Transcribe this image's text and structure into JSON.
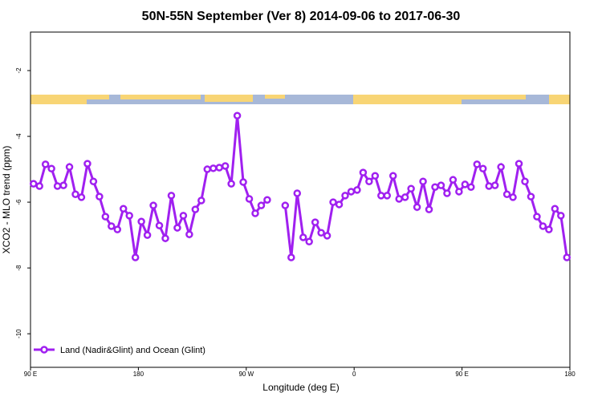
{
  "chart_data": {
    "type": "line",
    "title": "50N-55N September (Ver 8)   2014-09-06 to 2017-06-30",
    "x_label": "Longitude (deg E)",
    "y_label": "XCO2 - MLO trend (ppm)",
    "x": [
      92.5,
      97.5,
      102.5,
      107.5,
      112.5,
      117.5,
      122.5,
      127.5,
      132.5,
      137.5,
      142.5,
      147.5,
      152.5,
      157.5,
      162.5,
      167.5,
      172.5,
      177.5,
      182.5,
      187.5,
      192.5,
      197.5,
      202.5,
      207.5,
      212.5,
      217.5,
      222.5,
      227.5,
      232.5,
      237.5,
      242.5,
      247.5,
      252.5,
      257.5,
      262.5,
      267.5,
      272.5,
      277.5,
      282.5,
      287.5,
      292.5,
      297.5,
      302.5,
      307.5,
      312.5,
      317.5,
      322.5,
      327.5,
      332.5,
      337.5,
      342.5,
      347.5,
      352.5,
      357.5,
      362.5,
      367.5,
      372.5,
      377.5,
      382.5,
      387.5,
      392.5,
      397.5,
      402.5,
      407.5,
      412.5,
      417.5,
      422.5,
      427.5,
      432.5,
      437.5,
      442.5,
      447.5,
      452.5,
      457.5,
      462.5,
      467.5,
      472.5,
      477.5,
      482.5,
      487.5,
      492.5,
      497.5,
      502.5,
      507.5,
      512.5,
      517.5,
      522.5,
      527.5,
      532.5,
      537.5
    ],
    "series": [
      {
        "name": "Land (Nadir&Glint) and Ocean (Glint)",
        "color": "#a020f0",
        "values": [
          -5.44,
          -5.51,
          -4.85,
          -4.98,
          -5.51,
          -5.49,
          -4.93,
          -5.76,
          -5.85,
          -4.83,
          -5.37,
          -5.83,
          -6.44,
          -6.73,
          -6.83,
          -6.2,
          -6.41,
          -7.68,
          -6.59,
          -7.0,
          -6.1,
          -6.71,
          -7.1,
          -5.8,
          -6.78,
          -6.41,
          -6.98,
          -6.22,
          -5.95,
          -5.0,
          -4.97,
          -4.95,
          -4.9,
          -5.44,
          -3.37,
          -5.39,
          -5.9,
          -6.34,
          -6.1,
          -5.93,
          null,
          null,
          -6.1,
          -7.68,
          -5.73,
          -7.07,
          -7.2,
          -6.61,
          -6.93,
          -7.02,
          -6.0,
          -6.07,
          -5.8,
          -5.68,
          -5.63,
          -5.1,
          -5.37,
          -5.2,
          -5.8,
          -5.8,
          -5.2,
          -5.9,
          -5.85,
          -5.59,
          -6.15,
          -5.37,
          -6.22,
          -5.54,
          -5.49,
          -5.73,
          -5.32,
          -5.68,
          -5.46,
          -5.54,
          -4.85,
          -4.98,
          -5.51,
          -5.49,
          -4.93,
          -5.76,
          -5.85,
          -4.83,
          -5.37,
          -5.83,
          -6.44,
          -6.73,
          -6.83,
          -6.2,
          -6.41,
          -7.68
        ]
      }
    ],
    "xlim": [
      90,
      540
    ],
    "xticks": [
      {
        "value": 90,
        "label": "90 E"
      },
      {
        "value": 180,
        "label": "180"
      },
      {
        "value": 270,
        "label": "90 W"
      },
      {
        "value": 360,
        "label": "0"
      },
      {
        "value": 450,
        "label": "90 E"
      },
      {
        "value": 540,
        "label": "180"
      }
    ],
    "ylim": [
      -11.02,
      -0.83
    ],
    "yticks": [
      -10,
      -8,
      -6,
      -4,
      -2
    ],
    "legend": "bottom-left"
  }
}
